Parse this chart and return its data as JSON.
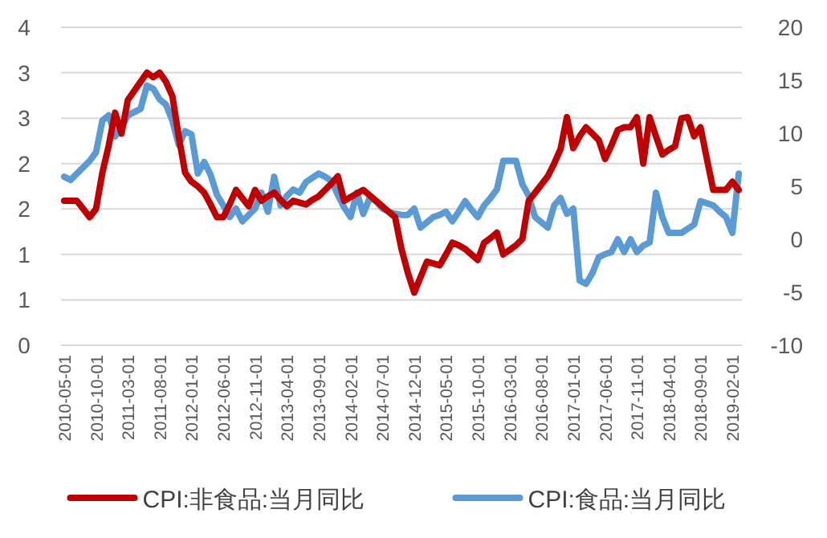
{
  "chart_data": {
    "type": "line",
    "categories": [
      "2010-05-01",
      null,
      null,
      null,
      null,
      "2010-10-01",
      null,
      null,
      null,
      null,
      "2011-03-01",
      null,
      null,
      null,
      null,
      "2011-08-01",
      null,
      null,
      null,
      null,
      "2012-01-01",
      null,
      null,
      null,
      null,
      "2012-06-01",
      null,
      null,
      null,
      null,
      "2012-11-01",
      null,
      null,
      null,
      null,
      "2013-04-01",
      null,
      null,
      null,
      null,
      "2013-09-01",
      null,
      null,
      null,
      null,
      "2014-02-01",
      null,
      null,
      null,
      null,
      "2014-07-01",
      null,
      null,
      null,
      null,
      "2014-12-01",
      null,
      null,
      null,
      null,
      "2015-05-01",
      null,
      null,
      null,
      null,
      "2015-10-01",
      null,
      null,
      null,
      null,
      "2016-03-01",
      null,
      null,
      null,
      null,
      "2016-08-01",
      null,
      null,
      null,
      null,
      "2017-01-01",
      null,
      null,
      null,
      null,
      "2017-06-01",
      null,
      null,
      null,
      null,
      "2017-11-01",
      null,
      null,
      null,
      null,
      "2018-04-01",
      null,
      null,
      null,
      null,
      "2018-09-01",
      null,
      null,
      null,
      null,
      "2019-02-01",
      null
    ],
    "series": [
      {
        "name": "CPI:非食品:当月同比",
        "color": "#c00000",
        "values": [
          1.59,
          1.59,
          1.59,
          1.5,
          1.41,
          1.5,
          1.9,
          2.2,
          2.56,
          2.33,
          2.7,
          2.8,
          2.9,
          3.0,
          2.95,
          3.0,
          2.9,
          2.74,
          2.3,
          1.9,
          1.8,
          1.75,
          1.68,
          1.55,
          1.41,
          1.41,
          1.55,
          1.71,
          1.62,
          1.53,
          1.71,
          1.59,
          1.64,
          1.68,
          1.6,
          1.53,
          1.59,
          1.57,
          1.55,
          1.6,
          1.64,
          1.71,
          1.78,
          1.86,
          1.59,
          1.63,
          1.67,
          1.71,
          1.65,
          1.59,
          1.53,
          1.47,
          1.41,
          1.06,
          0.8,
          0.58,
          0.75,
          0.92,
          0.9,
          0.88,
          1.0,
          1.13,
          1.1,
          1.06,
          1.0,
          0.94,
          1.13,
          1.18,
          1.24,
          1.0,
          1.05,
          1.1,
          1.17,
          1.59,
          1.68,
          1.77,
          1.86,
          2.0,
          2.16,
          2.51,
          2.17,
          2.3,
          2.4,
          2.33,
          2.26,
          2.05,
          2.2,
          2.37,
          2.4,
          2.4,
          2.51,
          2.0,
          2.51,
          2.3,
          2.1,
          2.15,
          2.19,
          2.5,
          2.51,
          2.3,
          2.4,
          2.05,
          1.71,
          1.71,
          1.71,
          1.8,
          1.71
        ]
      },
      {
        "name": "CPI:食品:当月同比",
        "color": "#5b9bd5",
        "axis": "y2",
        "values": [
          5.9,
          5.6,
          6.2,
          6.8,
          7.4,
          8.2,
          11.2,
          11.7,
          9.7,
          10.5,
          11.7,
          12.0,
          12.3,
          14.5,
          14.2,
          13.2,
          12.7,
          11.2,
          8.9,
          10.2,
          9.9,
          6.2,
          7.3,
          6.1,
          4.2,
          3.2,
          2.1,
          2.9,
          1.7,
          2.3,
          2.9,
          4.4,
          2.6,
          5.9,
          3.2,
          4.1,
          4.7,
          4.4,
          5.4,
          5.8,
          6.2,
          5.9,
          5.5,
          4.2,
          3.0,
          2.1,
          4.4,
          2.4,
          3.9,
          3.6,
          2.9,
          2.6,
          2.4,
          2.3,
          2.3,
          2.9,
          1.1,
          1.6,
          2.1,
          2.3,
          2.6,
          1.7,
          2.6,
          3.6,
          2.8,
          2.1,
          3.2,
          3.9,
          4.7,
          7.4,
          7.4,
          7.4,
          5.2,
          4.1,
          2.1,
          1.6,
          1.1,
          3.2,
          3.9,
          2.4,
          2.9,
          -3.9,
          -4.2,
          -3.2,
          -1.7,
          -1.4,
          -1.2,
          0.0,
          -1.2,
          0.0,
          -1.2,
          -0.6,
          -0.3,
          4.4,
          2.1,
          0.6,
          0.6,
          0.6,
          1.0,
          1.4,
          3.6,
          3.4,
          3.2,
          2.6,
          2.1,
          0.6,
          6.2
        ]
      }
    ],
    "ylim": [
      0,
      3.5
    ],
    "yticks": [
      0,
      {
        "value": 0.5,
        "label": "1"
      },
      1,
      {
        "value": 1.5,
        "label": "2"
      },
      2,
      {
        "value": 2.5,
        "label": "3"
      },
      3,
      {
        "value": 3.5,
        "label": "4"
      }
    ],
    "y2lim": [
      -10,
      20
    ],
    "y2ticks": [
      -10,
      -5,
      0,
      5,
      10,
      15,
      20
    ],
    "grid": "y",
    "legend": "bottom"
  }
}
